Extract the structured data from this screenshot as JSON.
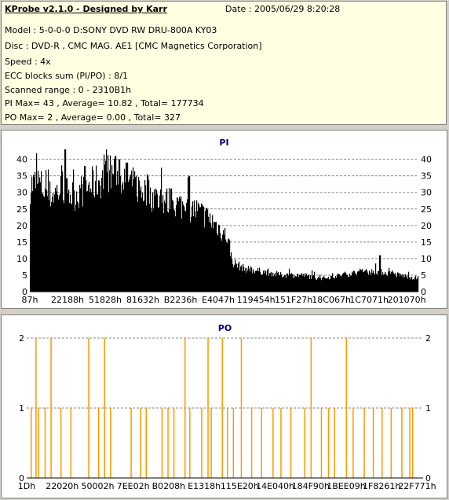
{
  "header": {
    "title": "KProbe v2.1.0 - Designed by Karr",
    "date": "Date : 2005/06/29 8:20:28",
    "lines": [
      "Model : 5-0-0-0 D:SONY    DVD RW DRU-800A  KY03",
      "Disc : DVD-R , CMC MAG. AE1 [CMC Magnetics Corporation]",
      "Speed : 4x",
      "ECC blocks sum (PI/PO) : 8/1",
      "Scanned range : 0 - 2310B1h",
      "PI Max= 43 , Average= 10.82 , Total= 177734",
      "PO Max= 2 , Average= 0.00 , Total= 327"
    ]
  },
  "colors": {
    "pi_bar": "#000000",
    "po_bar": "#ff9900",
    "title": "#000080",
    "grid": "#8a8a8a"
  },
  "chart_data": [
    {
      "type": "bar",
      "title": "PI",
      "ylim": [
        0,
        43
      ],
      "yticks": [
        0,
        5,
        10,
        15,
        20,
        25,
        30,
        35,
        40
      ],
      "xticks": [
        "87h",
        "22188h",
        "51828h",
        "81632h",
        "B2236h",
        "E4047h",
        "119454h",
        "151F27h",
        "18C067h",
        "1C7071h",
        "201070h"
      ],
      "grid": true,
      "profile": [
        {
          "x": 0.0,
          "y": 32
        },
        {
          "x": 0.02,
          "y": 33
        },
        {
          "x": 0.05,
          "y": 29
        },
        {
          "x": 0.08,
          "y": 31
        },
        {
          "x": 0.11,
          "y": 29
        },
        {
          "x": 0.14,
          "y": 31
        },
        {
          "x": 0.17,
          "y": 33
        },
        {
          "x": 0.2,
          "y": 35
        },
        {
          "x": 0.22,
          "y": 37
        },
        {
          "x": 0.24,
          "y": 34
        },
        {
          "x": 0.27,
          "y": 32
        },
        {
          "x": 0.3,
          "y": 30
        },
        {
          "x": 0.33,
          "y": 28
        },
        {
          "x": 0.36,
          "y": 27
        },
        {
          "x": 0.39,
          "y": 26
        },
        {
          "x": 0.42,
          "y": 25
        },
        {
          "x": 0.45,
          "y": 23
        },
        {
          "x": 0.48,
          "y": 20
        },
        {
          "x": 0.51,
          "y": 16
        },
        {
          "x": 0.52,
          "y": 9
        },
        {
          "x": 0.55,
          "y": 7
        },
        {
          "x": 0.6,
          "y": 6
        },
        {
          "x": 0.65,
          "y": 5
        },
        {
          "x": 0.7,
          "y": 5
        },
        {
          "x": 0.75,
          "y": 4
        },
        {
          "x": 0.8,
          "y": 5
        },
        {
          "x": 0.85,
          "y": 6
        },
        {
          "x": 0.9,
          "y": 6
        },
        {
          "x": 0.95,
          "y": 5
        },
        {
          "x": 1.0,
          "y": 4
        }
      ],
      "peaks": [
        {
          "x": 0.09,
          "y": 43
        },
        {
          "x": 0.22,
          "y": 41
        },
        {
          "x": 0.23,
          "y": 40
        },
        {
          "x": 0.25,
          "y": 39
        },
        {
          "x": 0.14,
          "y": 38
        },
        {
          "x": 0.41,
          "y": 35
        },
        {
          "x": 0.51,
          "y": 16
        },
        {
          "x": 0.9,
          "y": 11
        }
      ]
    },
    {
      "type": "bar",
      "title": "PO",
      "ylim": [
        0,
        2
      ],
      "yticks": [
        0,
        1,
        2
      ],
      "xticks": [
        "1Dh",
        "22020h",
        "50002h",
        "7EE02h",
        "B0208h",
        "E1318h",
        "115E20h",
        "14E040h",
        "184F90h",
        "1BEE09h",
        "1F8261h",
        "22F771h"
      ],
      "grid": true,
      "points": [
        {
          "x": 0.01,
          "y": 1
        },
        {
          "x": 0.022,
          "y": 2
        },
        {
          "x": 0.028,
          "y": 1
        },
        {
          "x": 0.045,
          "y": 1
        },
        {
          "x": 0.06,
          "y": 2
        },
        {
          "x": 0.085,
          "y": 1
        },
        {
          "x": 0.11,
          "y": 1
        },
        {
          "x": 0.155,
          "y": 2
        },
        {
          "x": 0.18,
          "y": 1
        },
        {
          "x": 0.195,
          "y": 2
        },
        {
          "x": 0.21,
          "y": 1
        },
        {
          "x": 0.262,
          "y": 1
        },
        {
          "x": 0.286,
          "y": 1
        },
        {
          "x": 0.3,
          "y": 1
        },
        {
          "x": 0.34,
          "y": 1
        },
        {
          "x": 0.355,
          "y": 1
        },
        {
          "x": 0.37,
          "y": 1
        },
        {
          "x": 0.398,
          "y": 2
        },
        {
          "x": 0.41,
          "y": 1
        },
        {
          "x": 0.44,
          "y": 1
        },
        {
          "x": 0.456,
          "y": 2
        },
        {
          "x": 0.464,
          "y": 1
        },
        {
          "x": 0.492,
          "y": 2
        },
        {
          "x": 0.505,
          "y": 1
        },
        {
          "x": 0.52,
          "y": 1
        },
        {
          "x": 0.54,
          "y": 2
        },
        {
          "x": 0.566,
          "y": 1
        },
        {
          "x": 0.591,
          "y": 1
        },
        {
          "x": 0.62,
          "y": 1
        },
        {
          "x": 0.64,
          "y": 1
        },
        {
          "x": 0.665,
          "y": 1
        },
        {
          "x": 0.7,
          "y": 1
        },
        {
          "x": 0.716,
          "y": 2
        },
        {
          "x": 0.742,
          "y": 1
        },
        {
          "x": 0.76,
          "y": 1
        },
        {
          "x": 0.775,
          "y": 1
        },
        {
          "x": 0.805,
          "y": 2
        },
        {
          "x": 0.822,
          "y": 1
        },
        {
          "x": 0.85,
          "y": 1
        },
        {
          "x": 0.873,
          "y": 1
        },
        {
          "x": 0.895,
          "y": 1
        },
        {
          "x": 0.918,
          "y": 1
        },
        {
          "x": 0.945,
          "y": 1
        },
        {
          "x": 0.965,
          "y": 1
        },
        {
          "x": 0.972,
          "y": 1
        }
      ]
    }
  ]
}
